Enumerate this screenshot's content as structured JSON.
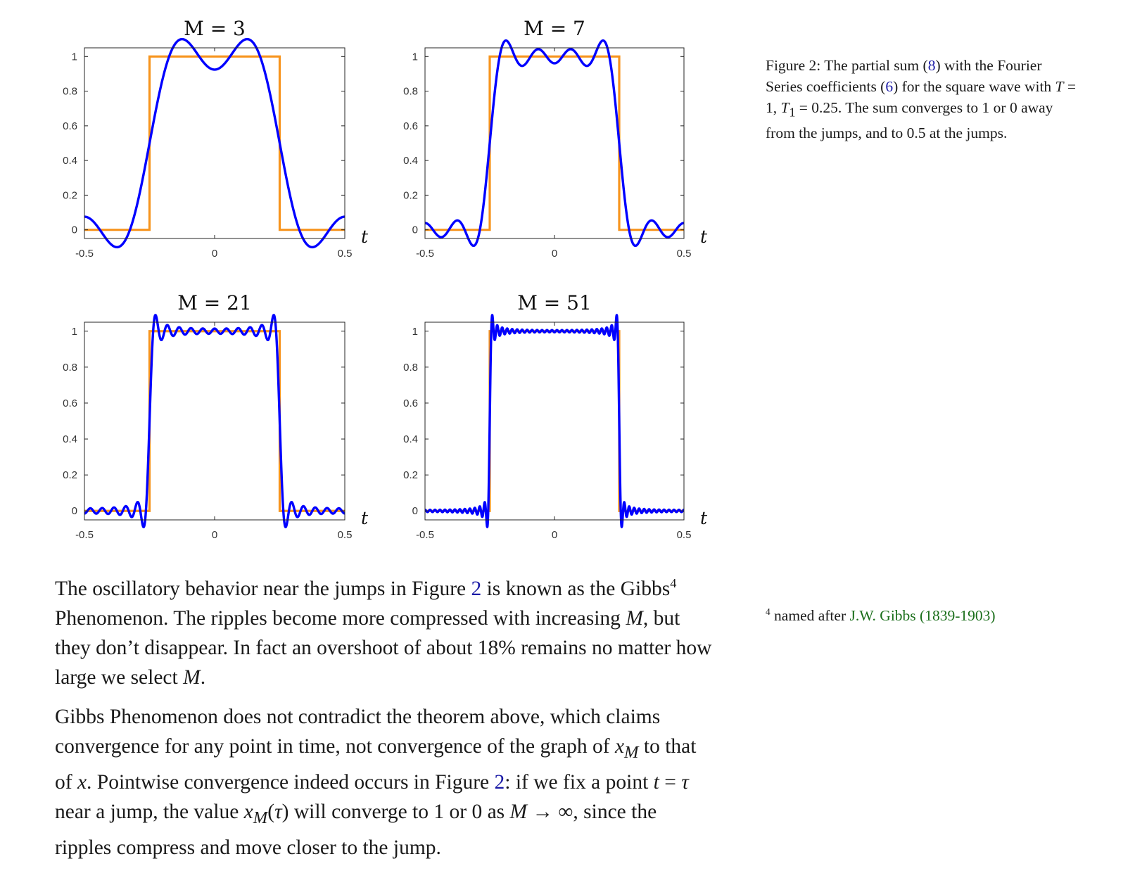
{
  "chart_data": [
    {
      "type": "line",
      "title": "M = 3",
      "xlabel": "t",
      "ylabel": "",
      "M": 3,
      "xlim": [
        -0.5,
        0.5
      ],
      "ylim": [
        -0.05,
        1.05
      ],
      "xticks": [
        -0.5,
        0,
        0.5
      ],
      "yticks": [
        0,
        0.2,
        0.4,
        0.6,
        0.8,
        1
      ],
      "xtick_labels": [
        "-0.5",
        "0",
        "0.5"
      ],
      "ytick_labels": [
        "0",
        "0.2",
        "0.4",
        "0.6",
        "0.8",
        "1"
      ],
      "series": [
        {
          "color": "#f7941d",
          "x": [
            -0.5,
            -0.25,
            -0.25,
            0.25,
            0.25,
            0.5
          ],
          "y": [
            0,
            0,
            1,
            1,
            0,
            0
          ]
        },
        {
          "color": "#0000ff",
          "generator": "fourier_partial_sum",
          "T": 1,
          "T1": 0.25
        }
      ]
    },
    {
      "type": "line",
      "title": "M = 7",
      "xlabel": "t",
      "ylabel": "",
      "M": 7,
      "xlim": [
        -0.5,
        0.5
      ],
      "ylim": [
        -0.05,
        1.05
      ],
      "xticks": [
        -0.5,
        0,
        0.5
      ],
      "yticks": [
        0,
        0.2,
        0.4,
        0.6,
        0.8,
        1
      ],
      "xtick_labels": [
        "-0.5",
        "0",
        "0.5"
      ],
      "ytick_labels": [
        "0",
        "0.2",
        "0.4",
        "0.6",
        "0.8",
        "1"
      ],
      "series": [
        {
          "color": "#f7941d",
          "x": [
            -0.5,
            -0.25,
            -0.25,
            0.25,
            0.25,
            0.5
          ],
          "y": [
            0,
            0,
            1,
            1,
            0,
            0
          ]
        },
        {
          "color": "#0000ff",
          "generator": "fourier_partial_sum",
          "T": 1,
          "T1": 0.25
        }
      ]
    },
    {
      "type": "line",
      "title": "M = 21",
      "xlabel": "t",
      "ylabel": "",
      "M": 21,
      "xlim": [
        -0.5,
        0.5
      ],
      "ylim": [
        -0.05,
        1.05
      ],
      "xticks": [
        -0.5,
        0,
        0.5
      ],
      "yticks": [
        0,
        0.2,
        0.4,
        0.6,
        0.8,
        1
      ],
      "xtick_labels": [
        "-0.5",
        "0",
        "0.5"
      ],
      "ytick_labels": [
        "0",
        "0.2",
        "0.4",
        "0.6",
        "0.8",
        "1"
      ],
      "series": [
        {
          "color": "#f7941d",
          "x": [
            -0.5,
            -0.25,
            -0.25,
            0.25,
            0.25,
            0.5
          ],
          "y": [
            0,
            0,
            1,
            1,
            0,
            0
          ]
        },
        {
          "color": "#0000ff",
          "generator": "fourier_partial_sum",
          "T": 1,
          "T1": 0.25
        }
      ]
    },
    {
      "type": "line",
      "title": "M = 51",
      "xlabel": "t",
      "ylabel": "",
      "M": 51,
      "xlim": [
        -0.5,
        0.5
      ],
      "ylim": [
        -0.05,
        1.05
      ],
      "xticks": [
        -0.5,
        0,
        0.5
      ],
      "yticks": [
        0,
        0.2,
        0.4,
        0.6,
        0.8,
        1
      ],
      "xtick_labels": [
        "-0.5",
        "0",
        "0.5"
      ],
      "ytick_labels": [
        "0",
        "0.2",
        "0.4",
        "0.6",
        "0.8",
        "1"
      ],
      "series": [
        {
          "color": "#f7941d",
          "x": [
            -0.5,
            -0.25,
            -0.25,
            0.25,
            0.25,
            0.5
          ],
          "y": [
            0,
            0,
            1,
            1,
            0,
            0
          ]
        },
        {
          "color": "#0000ff",
          "generator": "fourier_partial_sum",
          "T": 1,
          "T1": 0.25
        }
      ]
    }
  ],
  "caption": {
    "p1": "Figure 2: The partial sum (",
    "ref1": "8",
    "p2": ") with the Fourier Series coefficients (",
    "ref2": "6",
    "p3": ") for the square wave with ",
    "math_T": "T",
    "p4": " = 1, ",
    "math_T1": "T",
    "math_T1_sub": "1",
    "p5": " = 0.25. The sum converges to 1 or 0 away from the jumps, and to 0.5 at the jumps."
  },
  "para1": {
    "s1": "The oscillatory behavior near the jumps in Figure ",
    "ref": "2",
    "s2": " is known as the Gibbs",
    "fn_mark": "4",
    "s3": " Phenomenon. The ripples become more compressed with increasing ",
    "math_M": "M",
    "s4": ", but they don’t disappear. In fact an overshoot of about 18% remains no matter how large we select ",
    "math_M2": "M",
    "s5": "."
  },
  "para2": {
    "s1": "Gibbs Phenomenon does not contradict the theorem above, which claims convergence for any point in time, not convergence of the graph of ",
    "m1": "x",
    "m1_sub": "M",
    "s2": " to that of ",
    "m2": "x",
    "s3": ". Pointwise convergence indeed occurs in Figure ",
    "ref": "2",
    "s4": ": if we fix a point ",
    "m3": "t",
    "s5": " = ",
    "m4": "τ",
    "s6": " near a jump, the value ",
    "m5": "x",
    "m5_sub": "M",
    "s7": "(",
    "m6": "τ",
    "s8": ") will converge to 1 or 0 as ",
    "m7": "M",
    "s9": " → ∞, since the ripples compress and move closer to the jump."
  },
  "sidenote": {
    "mark": "4",
    "text": " named after ",
    "link": "J.W. Gibbs (1839-1903)"
  },
  "colors": {
    "square_wave": "#f7941d",
    "partial_sum": "#0000ff",
    "refs": "#1a1aa6",
    "link": "#1a6e1a"
  }
}
